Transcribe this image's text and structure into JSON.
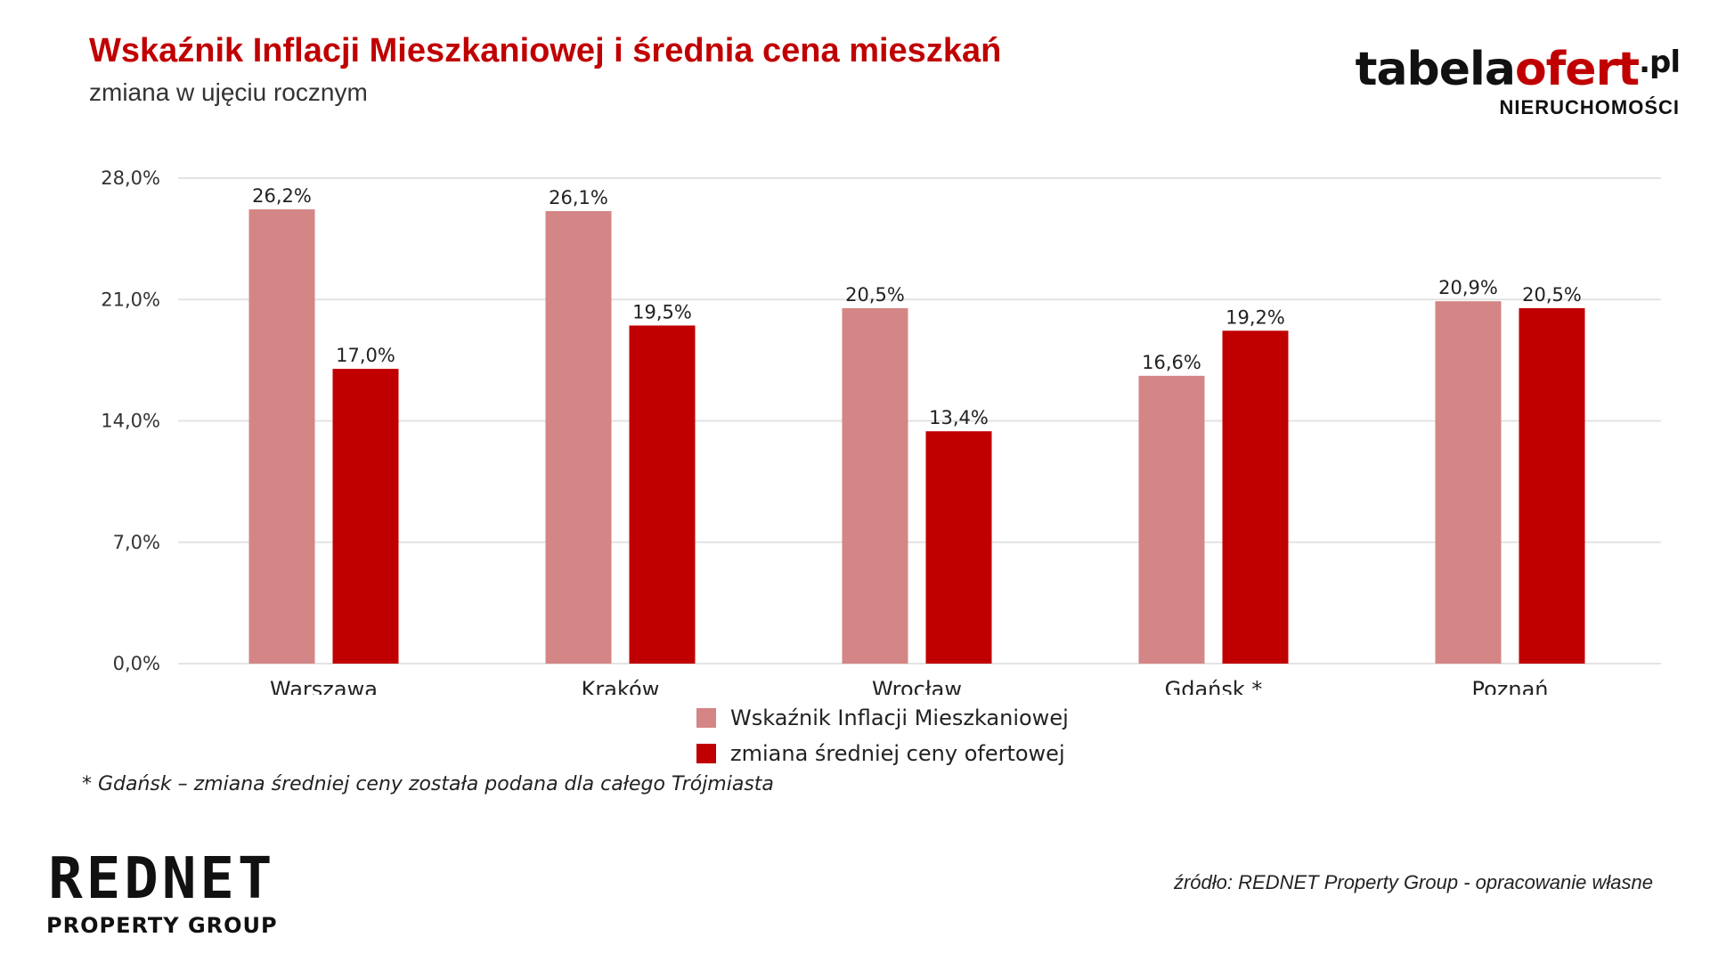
{
  "header": {
    "title": "Wskaźnik Inflacji Mieszkaniowej i średnia cena mieszkań",
    "subtitle": "zmiana w ujęciu rocznym"
  },
  "brand": {
    "name_part1": "tabela",
    "name_part2": "ofert",
    "name_part3": ".pl",
    "tagline": "NIERUCHOMOŚCI"
  },
  "chart_data": {
    "type": "bar",
    "title": "Wskaźnik Inflacji Mieszkaniowej i średnia cena mieszkań",
    "subtitle": "zmiana w ujęciu rocznym",
    "categories": [
      "Warszawa",
      "Kraków",
      "Wrocław",
      "Gdańsk *",
      "Poznań"
    ],
    "series": [
      {
        "name": "Wskaźnik Inflacji Mieszkaniowej",
        "color": "#d48585",
        "values": [
          26.2,
          26.1,
          20.5,
          16.6,
          20.9
        ],
        "labels": [
          "26,2%",
          "26,1%",
          "20,5%",
          "16,6%",
          "20,9%"
        ]
      },
      {
        "name": "zmiana średniej ceny ofertowej",
        "color": "#c00000",
        "values": [
          17.0,
          19.5,
          13.4,
          19.2,
          20.5
        ],
        "labels": [
          "17,0%",
          "19,5%",
          "13,4%",
          "19,2%",
          "20,5%"
        ]
      }
    ],
    "ylim": [
      0,
      28
    ],
    "yticks": [
      0,
      7,
      14,
      21,
      28
    ],
    "ytick_labels": [
      "0,0%",
      "7,0%",
      "14,0%",
      "21,0%",
      "28,0%"
    ],
    "grid": true,
    "legend_position": "bottom-center",
    "xlabel": "",
    "ylabel": ""
  },
  "footnote": "* Gdańsk – zmiana średniej ceny została podana dla całego Trójmiasta",
  "footer_logo": {
    "name": "REDNET",
    "tagline": "PROPERTY GROUP"
  },
  "source": "źródło: REDNET Property Group - opracowanie własne"
}
